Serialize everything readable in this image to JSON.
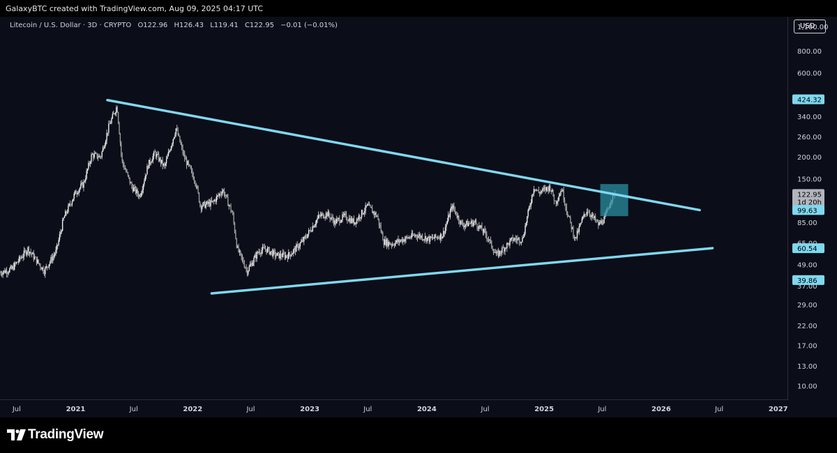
{
  "header": {
    "attribution": "GalaxyBTC created with TradingView.com, Aug 09, 2025 04:17 UTC"
  },
  "symbol": {
    "name": "Litecoin / U.S. Dollar · 3D · CRYPTO",
    "open": "O122.96",
    "high": "H126.43",
    "low": "L119.41",
    "close": "C122.95",
    "change": "−0.01 (−0.01%)"
  },
  "currency_button": "USD",
  "colors": {
    "background": "#0b0d18",
    "candles": "#d9d9d9",
    "trendline": "#7fd8f0",
    "highlight_box": "#2a8da0",
    "axis_text": "#d1d4dc"
  },
  "chart_data": {
    "type": "candlestick",
    "yscale": "log",
    "ylim": [
      8.3,
      1250
    ],
    "xlim": [
      "2020-05-10",
      "2027-02-01"
    ],
    "y_ticks": [
      "1,100.00",
      "800.00",
      "600.00",
      "340.00",
      "260.00",
      "200.00",
      "150.00",
      "85.00",
      "65.00",
      "49.00",
      "37.00",
      "29.00",
      "22.00",
      "17.00",
      "13.00",
      "10.00"
    ],
    "x_ticks": [
      {
        "label": "Jul",
        "date": "2020-07-01"
      },
      {
        "label": "2021",
        "date": "2021-01-01"
      },
      {
        "label": "Jul",
        "date": "2021-07-01"
      },
      {
        "label": "2022",
        "date": "2022-01-01"
      },
      {
        "label": "Jul",
        "date": "2022-07-01"
      },
      {
        "label": "2023",
        "date": "2023-01-01"
      },
      {
        "label": "Jul",
        "date": "2023-07-01"
      },
      {
        "label": "2024",
        "date": "2024-01-01"
      },
      {
        "label": "Jul",
        "date": "2024-07-01"
      },
      {
        "label": "2025",
        "date": "2025-01-01"
      },
      {
        "label": "Jul",
        "date": "2025-07-01"
      },
      {
        "label": "2026",
        "date": "2026-01-01"
      },
      {
        "label": "Jul",
        "date": "2026-07-01"
      },
      {
        "label": "2027",
        "date": "2027-01-01"
      }
    ],
    "price_path": [
      [
        "2020-05-10",
        44
      ],
      [
        "2020-06-15",
        46
      ],
      [
        "2020-08-05",
        60
      ],
      [
        "2020-09-25",
        45
      ],
      [
        "2020-11-01",
        58
      ],
      [
        "2020-11-25",
        90
      ],
      [
        "2020-12-31",
        125
      ],
      [
        "2021-01-25",
        140
      ],
      [
        "2021-02-20",
        205
      ],
      [
        "2021-03-20",
        200
      ],
      [
        "2021-04-15",
        300
      ],
      [
        "2021-05-10",
        390
      ],
      [
        "2021-05-25",
        190
      ],
      [
        "2021-06-25",
        135
      ],
      [
        "2021-07-20",
        120
      ],
      [
        "2021-08-15",
        180
      ],
      [
        "2021-09-05",
        210
      ],
      [
        "2021-10-05",
        175
      ],
      [
        "2021-11-10",
        290
      ],
      [
        "2021-12-05",
        200
      ],
      [
        "2022-01-10",
        145
      ],
      [
        "2022-01-25",
        105
      ],
      [
        "2022-03-05",
        110
      ],
      [
        "2022-04-05",
        130
      ],
      [
        "2022-05-05",
        95
      ],
      [
        "2022-05-20",
        60
      ],
      [
        "2022-06-20",
        45
      ],
      [
        "2022-07-25",
        58
      ],
      [
        "2022-08-15",
        60
      ],
      [
        "2022-09-20",
        55
      ],
      [
        "2022-10-25",
        55
      ],
      [
        "2022-11-10",
        58
      ],
      [
        "2022-12-15",
        68
      ],
      [
        "2023-01-30",
        92
      ],
      [
        "2023-02-25",
        95
      ],
      [
        "2023-03-20",
        85
      ],
      [
        "2023-04-20",
        92
      ],
      [
        "2023-05-20",
        85
      ],
      [
        "2023-06-30",
        105
      ],
      [
        "2023-07-30",
        92
      ],
      [
        "2023-08-20",
        66
      ],
      [
        "2023-09-15",
        64
      ],
      [
        "2023-10-20",
        68
      ],
      [
        "2023-11-30",
        72
      ],
      [
        "2024-01-10",
        68
      ],
      [
        "2024-02-20",
        72
      ],
      [
        "2024-03-20",
        105
      ],
      [
        "2024-04-20",
        82
      ],
      [
        "2024-05-30",
        85
      ],
      [
        "2024-07-05",
        72
      ],
      [
        "2024-08-05",
        55
      ],
      [
        "2024-09-25",
        68
      ],
      [
        "2024-10-25",
        68
      ],
      [
        "2024-11-30",
        135
      ],
      [
        "2024-12-15",
        125
      ],
      [
        "2025-01-20",
        135
      ],
      [
        "2025-02-05",
        110
      ],
      [
        "2025-02-25",
        132
      ],
      [
        "2025-03-15",
        95
      ],
      [
        "2025-04-08",
        68
      ],
      [
        "2025-04-30",
        88
      ],
      [
        "2025-05-15",
        100
      ],
      [
        "2025-06-20",
        82
      ],
      [
        "2025-07-10",
        90
      ],
      [
        "2025-07-28",
        115
      ],
      [
        "2025-08-09",
        122.95
      ]
    ],
    "trendlines": [
      {
        "name": "resistance",
        "from": [
          "2021-04-10",
          420
        ],
        "to": [
          "2026-05-01",
          99.63
        ]
      },
      {
        "name": "support",
        "from": [
          "2022-03-01",
          33.5
        ],
        "to": [
          "2026-06-10",
          60.54
        ]
      }
    ],
    "highlight_box": {
      "from": [
        "2025-06-25",
        92
      ],
      "to": [
        "2025-09-20",
        140
      ]
    },
    "price_labels": [
      {
        "value": 424.32,
        "label": "424.32",
        "style": "cyan"
      },
      {
        "value": 122.95,
        "label": "122.95",
        "sublabel": "1d 20h",
        "style": "gray"
      },
      {
        "value": 99.63,
        "label": "99.63",
        "style": "cyan"
      },
      {
        "value": 60.54,
        "label": "60.54",
        "style": "cyan"
      },
      {
        "value": 39.86,
        "label": "39.86",
        "style": "cyan"
      }
    ]
  },
  "footer": {
    "brand": "TradingView"
  }
}
